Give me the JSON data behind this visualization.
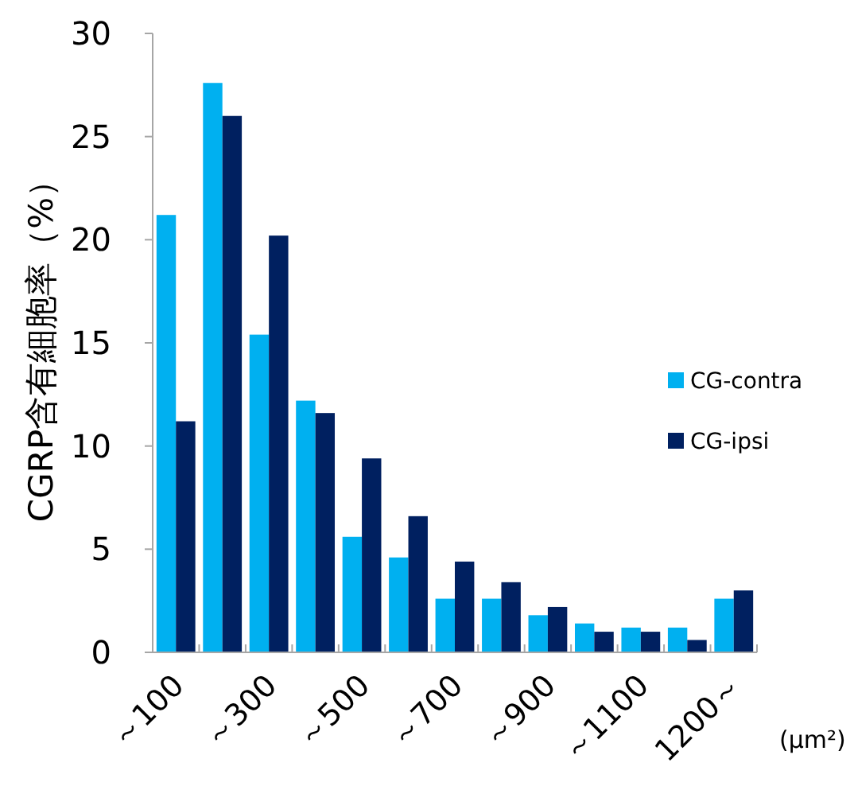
{
  "chart_data": {
    "type": "bar",
    "ylabel": "CGRP含有細胞率（%）",
    "xlabel": "(μm²)",
    "categories": [
      "～100",
      null,
      "～300",
      null,
      "～500",
      null,
      "～700",
      null,
      "～900",
      null,
      "～1100",
      null,
      "1200～"
    ],
    "series": [
      {
        "name": "CG-contra",
        "color": "#00b0f0",
        "values": [
          21.2,
          27.6,
          15.4,
          12.2,
          5.6,
          4.6,
          2.6,
          2.6,
          1.8,
          1.4,
          1.2,
          1.2,
          2.6
        ]
      },
      {
        "name": "CG-ipsi",
        "color": "#002060",
        "values": [
          11.2,
          26.0,
          20.2,
          11.6,
          9.4,
          6.6,
          4.4,
          3.4,
          2.2,
          1.0,
          1.0,
          0.6,
          3.0
        ]
      }
    ],
    "ylim": [
      0,
      30
    ],
    "yticks": [
      0,
      5,
      10,
      15,
      20,
      25,
      30
    ],
    "legend": "right",
    "grid": false
  }
}
